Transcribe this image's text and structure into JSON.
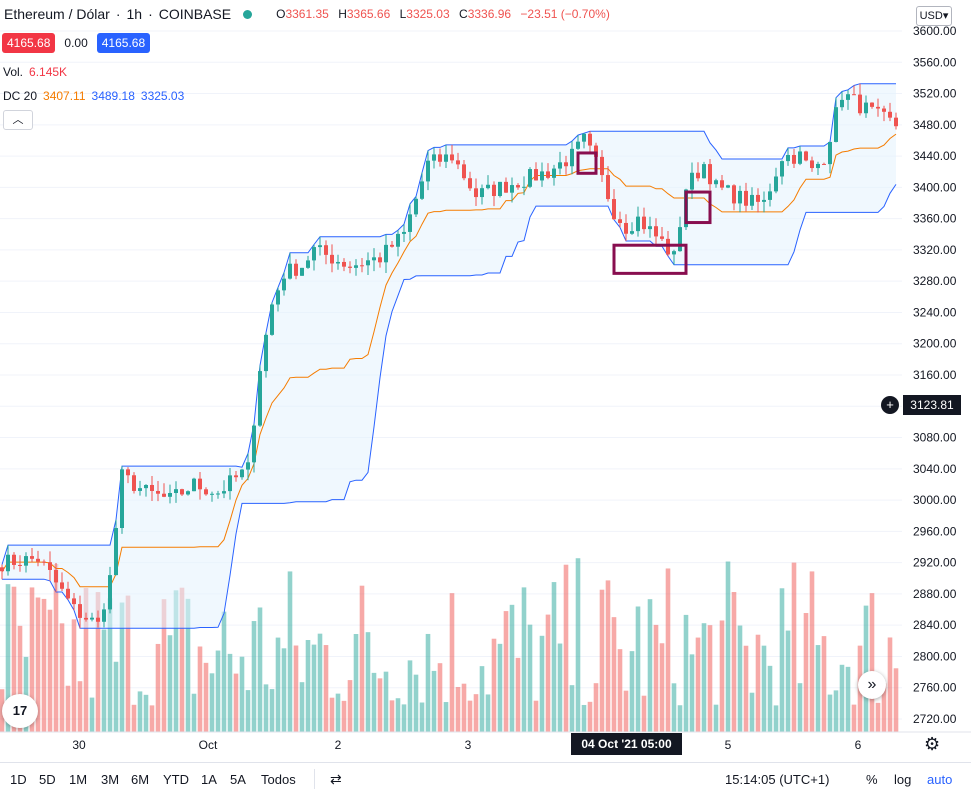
{
  "header": {
    "symbol": "Ethereum / Dólar",
    "interval": "1h",
    "exchange": "COINBASE",
    "open_label": "O",
    "open": "3361.35",
    "high_label": "H",
    "high": "3365.66",
    "low_label": "L",
    "low": "3325.03",
    "close_label": "C",
    "close": "3336.96",
    "change": "−23.51 (−0.70%)",
    "bid": "4165.68",
    "spread": "0.00",
    "ask": "4165.68"
  },
  "indicators": {
    "volume_label": "Vol.",
    "volume_value": "6.145K",
    "dc_label": "DC 20",
    "dc_basis": "3407.11",
    "dc_upper": "3489.18",
    "dc_lower": "3325.03",
    "collapse_icon": "chevron-up-icon"
  },
  "price_scale": {
    "currency": "USD",
    "crosshair_price": "3123.81"
  },
  "time_scale": {
    "crosshair_time": "04 Oct '21   05:00"
  },
  "bottom_toolbar": {
    "ranges": [
      "1D",
      "5D",
      "1M",
      "3M",
      "6M",
      "YTD",
      "1A",
      "5A",
      "Todos"
    ],
    "clock": "15:14:05 (UTC+1)",
    "percent": "%",
    "log": "log",
    "auto": "auto"
  },
  "colors": {
    "up": "#26a69a",
    "down": "#ef5350",
    "dc_upper_lower": "#2962ff",
    "dc_basis": "#f57c00",
    "highlight_box": "#880e4f",
    "dc_fill": "#e3f2fd"
  },
  "chart_data": {
    "type": "candlestick",
    "ylim": [
      2710,
      3640
    ],
    "y_ticks": [
      2720,
      2760,
      2800,
      2840,
      2880,
      2920,
      2960,
      3000,
      3040,
      3080,
      3120,
      3160,
      3200,
      3240,
      3280,
      3320,
      3360,
      3400,
      3440,
      3480,
      3520,
      3560,
      3600
    ],
    "x_ticks": [
      "30",
      "Oct",
      "2",
      "3",
      "4",
      "5",
      "6"
    ],
    "bar_count": 150,
    "price_path_keypoints": [
      [
        0,
        2920
      ],
      [
        6,
        2925
      ],
      [
        8,
        2905
      ],
      [
        12,
        2860
      ],
      [
        16,
        2840
      ],
      [
        18,
        2900
      ],
      [
        20,
        3030
      ],
      [
        24,
        3010
      ],
      [
        28,
        3000
      ],
      [
        32,
        3020
      ],
      [
        36,
        3010
      ],
      [
        41,
        3040
      ],
      [
        43,
        3170
      ],
      [
        45,
        3250
      ],
      [
        47,
        3290
      ],
      [
        50,
        3300
      ],
      [
        52,
        3320
      ],
      [
        55,
        3310
      ],
      [
        58,
        3300
      ],
      [
        63,
        3310
      ],
      [
        67,
        3340
      ],
      [
        71,
        3430
      ],
      [
        75,
        3440
      ],
      [
        79,
        3390
      ],
      [
        83,
        3400
      ],
      [
        87,
        3410
      ],
      [
        91,
        3420
      ],
      [
        95,
        3440
      ],
      [
        97,
        3460
      ],
      [
        99,
        3430
      ],
      [
        102,
        3370
      ],
      [
        104,
        3350
      ],
      [
        106,
        3360
      ],
      [
        110,
        3330
      ],
      [
        112,
        3310
      ],
      [
        114,
        3400
      ],
      [
        117,
        3430
      ],
      [
        119,
        3400
      ],
      [
        122,
        3390
      ],
      [
        125,
        3380
      ],
      [
        127,
        3380
      ],
      [
        130,
        3440
      ],
      [
        133,
        3440
      ],
      [
        135,
        3420
      ],
      [
        137,
        3440
      ],
      [
        140,
        3520
      ],
      [
        142,
        3510
      ],
      [
        146,
        3490
      ],
      [
        149,
        3480
      ]
    ],
    "donchian_period": 20,
    "highlight_boxes": [
      {
        "from_bar": 96,
        "to_bar": 99,
        "low": 3418,
        "high": 3444
      },
      {
        "from_bar": 102,
        "to_bar": 114,
        "low": 3290,
        "high": 3326
      },
      {
        "from_bar": 114,
        "to_bar": 118,
        "low": 3355,
        "high": 3394
      }
    ],
    "volume_max_label": "6.145K"
  }
}
